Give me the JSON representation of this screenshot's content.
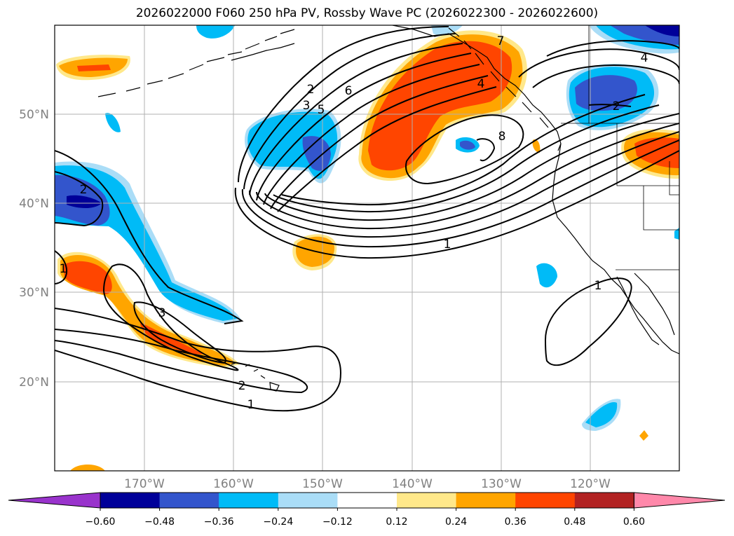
{
  "title": "2026022000 F060 250 hPa PV, Rossby Wave PC (2026022300 - 2026022600)",
  "lat_labels": [
    "50°N",
    "40°N",
    "30°N",
    "20°N"
  ],
  "lon_labels": [
    "170°W",
    "160°W",
    "150°W",
    "140°W",
    "130°W",
    "120°W"
  ],
  "colorbar": {
    "ticks": [
      "−0.60",
      "−0.48",
      "−0.36",
      "−0.24",
      "−0.12",
      "0.12",
      "0.24",
      "0.36",
      "0.48",
      "0.60"
    ],
    "colors": [
      "#9933cc",
      "#000099",
      "#3355cc",
      "#00bbf7",
      "#aaddf7",
      "#ffffff",
      "#ffe88a",
      "#ffa500",
      "#ff4500",
      "#b22222",
      "#ff88aa"
    ]
  },
  "contour_labels": [
    "2",
    "2",
    "3",
    "5",
    "6",
    "7",
    "4",
    "8",
    "2",
    "4",
    "1",
    "1",
    "1",
    "3",
    "2",
    "1"
  ],
  "colors": {
    "dark_blue": "#000099",
    "mid_blue": "#3355cc",
    "cyan": "#00bbf7",
    "light_cyan": "#aaddf7",
    "yellow": "#ffe88a",
    "orange": "#ffa500",
    "red_orange": "#ff4500"
  }
}
